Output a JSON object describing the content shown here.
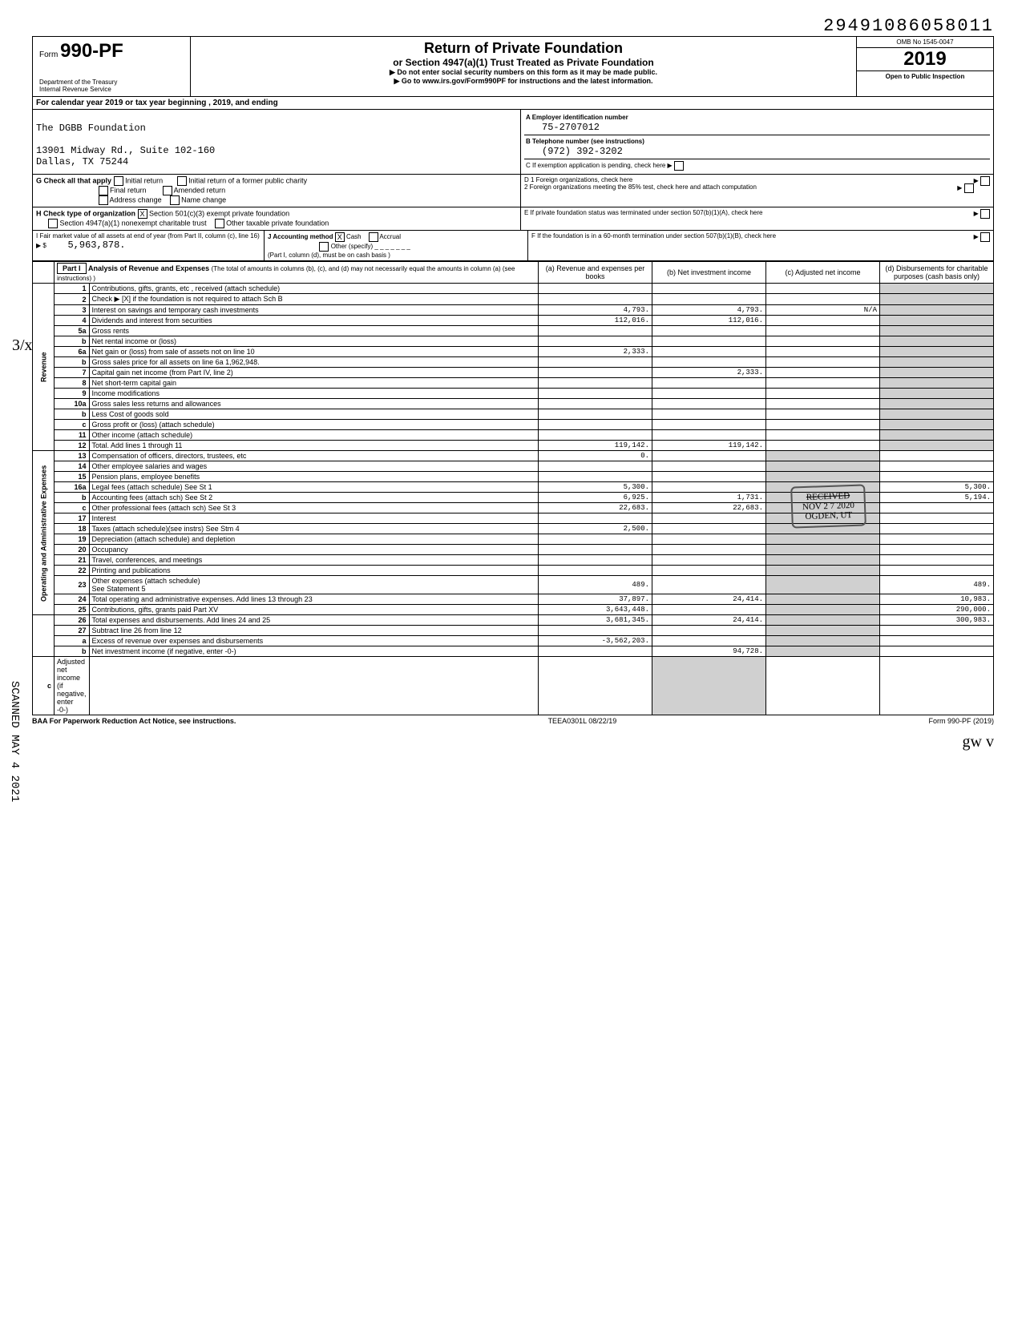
{
  "top_code": "29491086058011",
  "form": {
    "prefix": "Form",
    "number": "990-PF",
    "dept": "Department of the Treasury\nInternal Revenue Service"
  },
  "header": {
    "title": "Return of Private Foundation",
    "subtitle": "or Section 4947(a)(1) Trust Treated as Private Foundation",
    "note1": "▶ Do not enter social security numbers on this form as it may be made public.",
    "note2": "▶ Go to www.irs.gov/Form990PF for instructions and the latest information.",
    "omb": "OMB No 1545-0047",
    "year": "2019",
    "inspection": "Open to Public Inspection"
  },
  "calendar_line": "For calendar year 2019 or tax year beginning                              , 2019, and ending",
  "org": {
    "name": "The DGBB Foundation",
    "address": "13901 Midway Rd., Suite 102-160\nDallas, TX 75244"
  },
  "boxA": {
    "label": "A  Employer identification number",
    "value": "75-2707012"
  },
  "boxB": {
    "label": "B  Telephone number (see instructions)",
    "value": "(972) 392-3202"
  },
  "boxC": "C  If exemption application is pending, check here  ▶",
  "boxG": {
    "label": "G  Check all that apply",
    "opts": [
      "Initial return",
      "Final return",
      "Address change",
      "Initial return of a former public charity",
      "Amended return",
      "Name change"
    ]
  },
  "boxD": {
    "d1": "D 1 Foreign organizations, check here",
    "d2": "2 Foreign organizations meeting the 85% test, check here and attach computation"
  },
  "boxH": {
    "label": "H  Check type of organization",
    "opt1": "Section 501(c)(3) exempt private foundation",
    "opt2": "Section 4947(a)(1) nonexempt charitable trust",
    "opt3": "Other taxable private foundation"
  },
  "boxE": "E  If private foundation status was terminated under section 507(b)(1)(A), check here",
  "boxI": {
    "label": "I  Fair market value of all assets at end of year (from Part II, column (c), line 16)",
    "value": "5,963,878."
  },
  "boxJ": {
    "label": "J  Accounting method",
    "cash": "Cash",
    "accrual": "Accrual",
    "other": "Other (specify)",
    "note": "(Part I, column (d), must be on cash basis )"
  },
  "boxF": "F  If the foundation is in a 60-month termination under section 507(b)(1)(B), check here",
  "part1": {
    "label": "Part I",
    "title": "Analysis of Revenue and Expenses",
    "note": "(The total of amounts in columns (b), (c), and (d) may not necessarily equal the amounts in column (a) (see instructions) )",
    "cols": {
      "a": "(a) Revenue and expenses per books",
      "b": "(b) Net investment income",
      "c": "(c) Adjusted net income",
      "d": "(d) Disbursements for charitable purposes (cash basis only)"
    }
  },
  "side_labels": {
    "revenue": "Revenue",
    "expenses": "Operating and Administrative Expenses"
  },
  "lines": [
    {
      "n": "1",
      "desc": "Contributions, gifts, grants, etc , received (attach schedule)"
    },
    {
      "n": "2",
      "desc": "Check ▶ [X] if the foundation is not required to attach Sch B"
    },
    {
      "n": "3",
      "desc": "Interest on savings and temporary cash investments",
      "a": "4,793.",
      "b": "4,793.",
      "c": "N/A"
    },
    {
      "n": "4",
      "desc": "Dividends and interest from securities",
      "a": "112,016.",
      "b": "112,016."
    },
    {
      "n": "5a",
      "desc": "Gross rents"
    },
    {
      "n": "b",
      "desc": "Net rental income or (loss)"
    },
    {
      "n": "6a",
      "desc": "Net gain or (loss) from sale of assets not on line 10",
      "a": "2,333."
    },
    {
      "n": "b",
      "desc": "Gross sales price for all assets on line 6a   1,962,948."
    },
    {
      "n": "7",
      "desc": "Capital gain net income (from Part IV, line 2)",
      "b": "2,333."
    },
    {
      "n": "8",
      "desc": "Net short-term capital gain"
    },
    {
      "n": "9",
      "desc": "Income modifications"
    },
    {
      "n": "10a",
      "desc": "Gross sales less returns and allowances"
    },
    {
      "n": "b",
      "desc": "Less Cost of goods sold"
    },
    {
      "n": "c",
      "desc": "Gross profit or (loss) (attach schedule)"
    },
    {
      "n": "11",
      "desc": "Other income (attach schedule)"
    },
    {
      "n": "12",
      "desc": "Total. Add lines 1 through 11",
      "a": "119,142.",
      "b": "119,142."
    },
    {
      "n": "13",
      "desc": "Compensation of officers, directors, trustees, etc",
      "a": "0."
    },
    {
      "n": "14",
      "desc": "Other employee salaries and wages"
    },
    {
      "n": "15",
      "desc": "Pension plans, employee benefits"
    },
    {
      "n": "16a",
      "desc": "Legal fees (attach schedule)   See St 1",
      "a": "5,300.",
      "d": "5,300."
    },
    {
      "n": "b",
      "desc": "Accounting fees (attach sch)   See St 2",
      "a": "6,925.",
      "b": "1,731.",
      "d": "5,194."
    },
    {
      "n": "c",
      "desc": "Other professional fees (attach sch)   See St 3",
      "a": "22,683.",
      "b": "22,683."
    },
    {
      "n": "17",
      "desc": "Interest"
    },
    {
      "n": "18",
      "desc": "Taxes (attach schedule)(see instrs)   See Stm 4",
      "a": "2,500."
    },
    {
      "n": "19",
      "desc": "Depreciation (attach schedule) and depletion"
    },
    {
      "n": "20",
      "desc": "Occupancy"
    },
    {
      "n": "21",
      "desc": "Travel, conferences, and meetings"
    },
    {
      "n": "22",
      "desc": "Printing and publications"
    },
    {
      "n": "23",
      "desc": "Other expenses (attach schedule)\n                        See Statement 5",
      "a": "489.",
      "d": "489."
    },
    {
      "n": "24",
      "desc": "Total operating and administrative expenses. Add lines 13 through 23",
      "a": "37,897.",
      "b": "24,414.",
      "d": "10,983."
    },
    {
      "n": "25",
      "desc": "Contributions, gifts, grants paid   Part XV",
      "a": "3,643,448.",
      "d": "290,000."
    },
    {
      "n": "26",
      "desc": "Total expenses and disbursements. Add lines 24 and 25",
      "a": "3,681,345.",
      "b": "24,414.",
      "d": "300,983."
    },
    {
      "n": "27",
      "desc": "Subtract line 26 from line 12"
    },
    {
      "n": "a",
      "desc": "Excess of revenue over expenses and disbursements",
      "a": "-3,562,203."
    },
    {
      "n": "b",
      "desc": "Net investment income (if negative, enter -0-)",
      "b": "94,728."
    },
    {
      "n": "c",
      "desc": "Adjusted net income (if negative, enter -0-)"
    }
  ],
  "stamp": {
    "received": "RECEIVED",
    "date": "NOV 2 7 2020",
    "ogden": "OGDEN, UT"
  },
  "footer": {
    "left": "BAA  For Paperwork Reduction Act Notice, see instructions.",
    "mid": "TEEA0301L  08/22/19",
    "right": "Form 990-PF (2019)"
  },
  "scanned": "SCANNED MAY  4 2021",
  "handwrite_left": "3/x",
  "handwrite_bottom": "gw                    v"
}
